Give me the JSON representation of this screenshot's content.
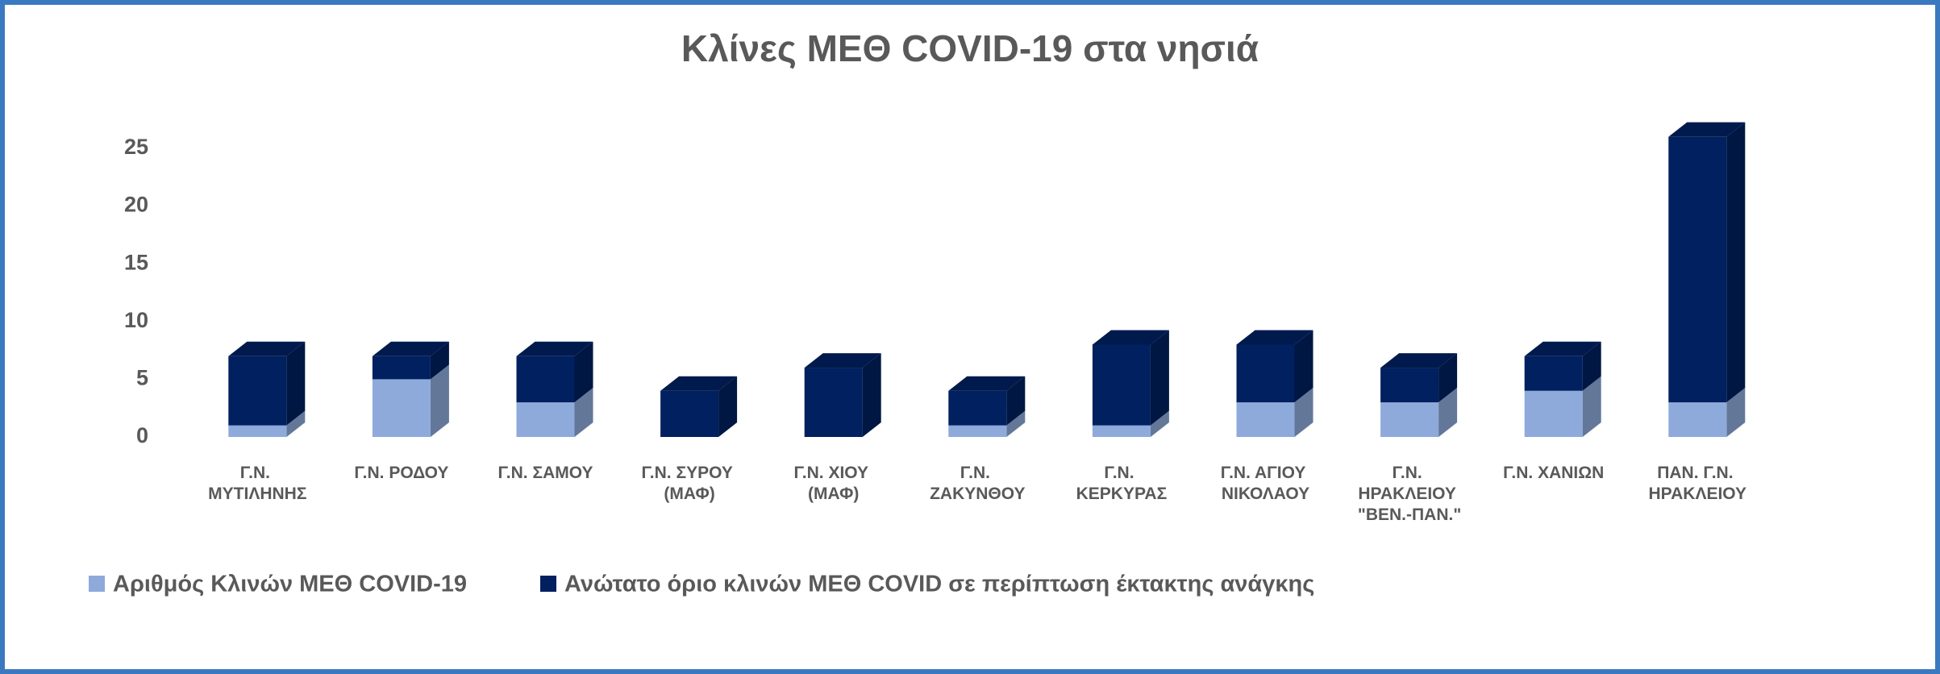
{
  "chart_data": {
    "type": "bar3d-stacked",
    "title": "Κλίνες  ΜΕΘ COVID-19 στα νησιά",
    "categories": [
      "Γ.Ν. ΜΥΤΙΛΗΝΗΣ",
      "Γ.Ν. ΡΟΔΟΥ",
      "Γ.Ν. ΣΑΜΟΥ",
      "Γ.Ν. ΣΥΡΟΥ (ΜΑΦ)",
      "Γ.Ν. ΧΙΟΥ (ΜΑΦ)",
      "Γ.Ν. ΖΑΚΥΝΘΟΥ",
      "Γ.Ν. ΚΕΡΚΥΡΑΣ",
      "Γ.Ν. ΑΓΙΟΥ ΝΙΚΟΛΑΟΥ",
      "Γ.Ν. ΗΡΑΚΛΕΙΟΥ \"ΒΕΝ.-ΠΑΝ.\"",
      "Γ.Ν. ΧΑΝΙΩΝ",
      "ΠΑΝ. Γ.Ν. ΗΡΑΚΛΕΙΟΥ"
    ],
    "series": [
      {
        "name": "Αριθμός Κλινών ΜΕΘ COVID-19",
        "color": "#8eaadb",
        "values": [
          1,
          5,
          3,
          0,
          0,
          1,
          1,
          3,
          3,
          4,
          3
        ]
      },
      {
        "name": "Ανώτατο όριο κλινών ΜΕΘ COVID σε περίπτωση έκτακτης ανάγκης",
        "color": "#002060",
        "values": [
          6,
          2,
          4,
          4,
          6,
          3,
          7,
          5,
          3,
          3,
          23
        ]
      }
    ],
    "stacked": true,
    "ylim": [
      0,
      27
    ],
    "yticks": [
      0,
      5,
      10,
      15,
      20,
      25
    ],
    "grid": false
  }
}
